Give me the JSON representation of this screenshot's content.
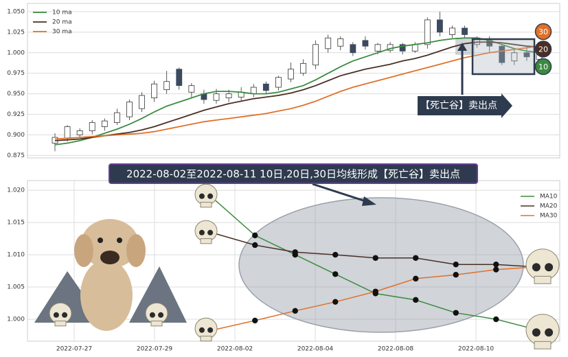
{
  "chart_data": [
    {
      "type": "candlestick",
      "open": [
        0.89,
        0.896,
        0.9,
        0.905,
        0.91,
        0.915,
        0.922,
        0.932,
        0.945,
        0.955,
        0.98,
        0.952,
        0.95,
        0.942,
        0.945,
        0.946,
        0.95,
        0.962,
        0.958,
        0.968,
        0.975,
        0.985,
        1.005,
        1.008,
        1.01,
        1.015,
        1.002,
        1.003,
        1.01,
        1.002,
        1.01,
        1.04,
        1.022,
        1.03,
        1.01,
        1.015,
        1.008,
        0.99,
        1.0,
        0.992
      ],
      "high": [
        0.902,
        0.912,
        0.908,
        0.918,
        0.92,
        0.932,
        0.943,
        0.952,
        0.966,
        0.978,
        0.982,
        0.963,
        0.955,
        0.956,
        0.955,
        0.958,
        0.962,
        0.965,
        0.972,
        0.988,
        0.992,
        1.015,
        1.022,
        1.02,
        1.013,
        1.02,
        1.012,
        1.013,
        1.012,
        1.013,
        1.043,
        1.05,
        1.033,
        1.033,
        1.02,
        1.02,
        1.01,
        1.005,
        1.008,
        1.005
      ],
      "low": [
        0.88,
        0.892,
        0.896,
        0.901,
        0.905,
        0.912,
        0.918,
        0.928,
        0.94,
        0.95,
        0.955,
        0.946,
        0.938,
        0.938,
        0.94,
        0.942,
        0.946,
        0.95,
        0.954,
        0.964,
        0.972,
        0.98,
        1.0,
        1.003,
        0.996,
        1.004,
        0.998,
        1.0,
        0.998,
        1.0,
        1.005,
        1.02,
        1.018,
        1.018,
        1.006,
        1.0,
        0.985,
        0.985,
        0.99,
        0.988
      ],
      "close": [
        0.897,
        0.91,
        0.905,
        0.915,
        0.917,
        0.927,
        0.94,
        0.948,
        0.962,
        0.965,
        0.96,
        0.96,
        0.943,
        0.95,
        0.95,
        0.952,
        0.958,
        0.954,
        0.97,
        0.98,
        0.987,
        1.01,
        1.018,
        1.017,
        1.0,
        1.008,
        1.01,
        1.01,
        1.002,
        1.01,
        1.04,
        1.025,
        1.03,
        1.022,
        1.018,
        1.008,
        0.988,
        1.0,
        0.995,
        1.002
      ],
      "up_color": "#ffffff",
      "down_color": "#3b4a5e",
      "series": [
        {
          "name": "10 ma",
          "color": "#3a8a3f",
          "values": [
            0.888,
            0.89,
            0.893,
            0.897,
            0.902,
            0.907,
            0.913,
            0.92,
            0.928,
            0.935,
            0.94,
            0.945,
            0.95,
            0.953,
            0.953,
            0.952,
            0.95,
            0.95,
            0.952,
            0.956,
            0.96,
            0.967,
            0.975,
            0.983,
            0.99,
            0.995,
            1.0,
            1.005,
            1.008,
            1.01,
            1.012,
            1.015,
            1.017,
            1.018,
            1.018,
            1.015,
            1.01,
            1.005,
            1.002,
            1.0
          ]
        },
        {
          "name": "20 ma",
          "color": "#4a2e22",
          "values": [
            0.893,
            0.894,
            0.895,
            0.897,
            0.899,
            0.901,
            0.903,
            0.906,
            0.91,
            0.915,
            0.92,
            0.925,
            0.93,
            0.934,
            0.938,
            0.941,
            0.944,
            0.946,
            0.948,
            0.951,
            0.955,
            0.96,
            0.966,
            0.972,
            0.976,
            0.98,
            0.983,
            0.986,
            0.99,
            0.993,
            0.997,
            1.002,
            1.007,
            1.011,
            1.013,
            1.013,
            1.012,
            1.01,
            1.008,
            1.007
          ]
        },
        {
          "name": "30 ma",
          "color": "#e07028",
          "values": [
            0.895,
            0.896,
            0.897,
            0.898,
            0.899,
            0.9,
            0.901,
            0.902,
            0.904,
            0.907,
            0.91,
            0.913,
            0.916,
            0.918,
            0.92,
            0.922,
            0.924,
            0.926,
            0.929,
            0.932,
            0.936,
            0.941,
            0.947,
            0.953,
            0.958,
            0.962,
            0.966,
            0.97,
            0.974,
            0.978,
            0.982,
            0.986,
            0.99,
            0.994,
            0.997,
            1.0,
            1.002,
            1.004,
            1.006,
            1.008
          ]
        }
      ],
      "ylim": [
        0.872,
        1.06
      ],
      "yticks": [
        {
          "value": 0.875,
          "label": "0.875"
        },
        {
          "value": 0.9,
          "label": "0.900"
        },
        {
          "value": 0.925,
          "label": "0.925"
        },
        {
          "value": 0.95,
          "label": "0.950"
        },
        {
          "value": 0.975,
          "label": "0.975"
        },
        {
          "value": 1.0,
          "label": "1.000"
        },
        {
          "value": 1.025,
          "label": "1.025"
        },
        {
          "value": 1.05,
          "label": "1.050"
        }
      ],
      "grid": true,
      "legend": "upper left",
      "annotation": "【死亡谷】卖出点",
      "badges": [
        {
          "text": "30",
          "color": "#e07028"
        },
        {
          "text": "20",
          "color": "#4a2e22"
        },
        {
          "text": "10",
          "color": "#3a8a3f"
        }
      ]
    },
    {
      "type": "line",
      "title": "2022-08-02至2022-08-11 10日,20日,30日均线形成【死亡谷】卖出点",
      "categories": [
        "2022-07-27",
        null,
        "2022-07-29",
        null,
        "2022-08-02",
        null,
        "2022-08-04",
        null,
        "2022-08-08",
        null,
        "2022-08-10",
        null
      ],
      "series": [
        {
          "name": "MA10",
          "color": "#3a8a3f",
          "values": [
            null,
            null,
            null,
            1.0185,
            1.013,
            1.01,
            1.007,
            1.004,
            1.003,
            1.001,
            1.0,
            0.9984
          ]
        },
        {
          "name": "MA20",
          "color": "#4a2e22",
          "values": [
            null,
            null,
            null,
            1.0133,
            1.0115,
            1.0104,
            1.01,
            1.0095,
            1.0095,
            1.0085,
            1.0085,
            1.0081
          ]
        },
        {
          "name": "MA30",
          "color": "#e07028",
          "values": [
            null,
            null,
            null,
            0.9984,
            0.9998,
            1.0013,
            1.0027,
            1.0043,
            1.0063,
            1.0069,
            1.0077,
            1.0081
          ]
        }
      ],
      "ylim": [
        0.9966,
        1.0215
      ],
      "yticks": [
        {
          "value": 1.0,
          "label": "1.000"
        },
        {
          "value": 1.005,
          "label": "1.005"
        },
        {
          "value": 1.01,
          "label": "1.010"
        },
        {
          "value": 1.015,
          "label": "1.015"
        },
        {
          "value": 1.02,
          "label": "1.020"
        }
      ],
      "grid": true,
      "legend": "upper right"
    }
  ]
}
